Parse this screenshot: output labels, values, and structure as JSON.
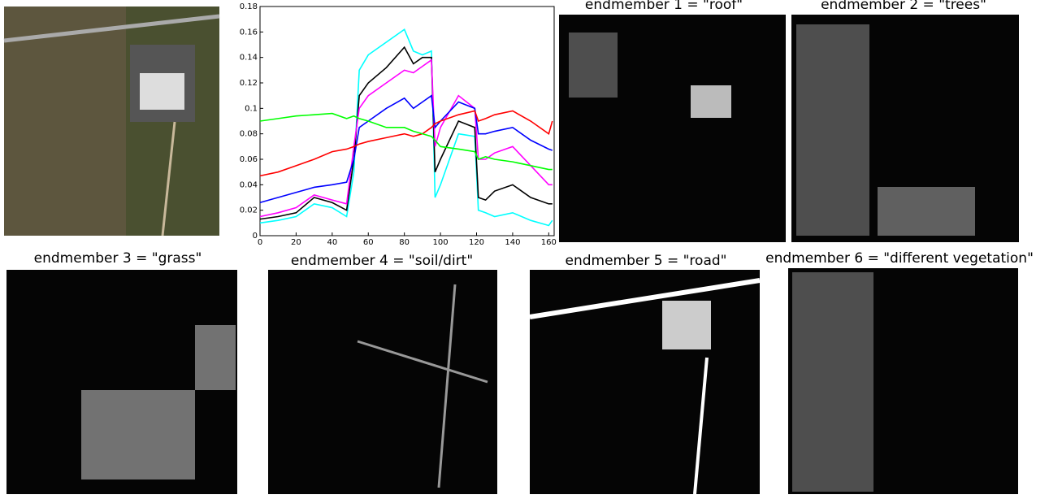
{
  "chart_data": {
    "type": "line",
    "x": [
      0,
      10,
      20,
      30,
      40,
      48,
      52,
      55,
      60,
      70,
      80,
      85,
      90,
      95,
      97,
      100,
      110,
      119,
      121,
      125,
      130,
      140,
      150,
      160,
      162
    ],
    "series": [
      {
        "color": "#00ffff",
        "values": [
          0.01,
          0.012,
          0.015,
          0.025,
          0.022,
          0.015,
          0.05,
          0.13,
          0.142,
          0.152,
          0.162,
          0.145,
          0.142,
          0.145,
          0.03,
          0.04,
          0.08,
          0.078,
          0.02,
          0.018,
          0.015,
          0.018,
          0.012,
          0.008,
          0.012
        ]
      },
      {
        "color": "#000000",
        "values": [
          0.013,
          0.015,
          0.018,
          0.03,
          0.026,
          0.02,
          0.06,
          0.11,
          0.12,
          0.132,
          0.148,
          0.135,
          0.14,
          0.14,
          0.05,
          0.06,
          0.09,
          0.085,
          0.03,
          0.028,
          0.035,
          0.04,
          0.03,
          0.025,
          0.025
        ]
      },
      {
        "color": "#ff00ff",
        "values": [
          0.015,
          0.018,
          0.022,
          0.032,
          0.028,
          0.025,
          0.07,
          0.1,
          0.11,
          0.12,
          0.13,
          0.128,
          0.133,
          0.138,
          0.07,
          0.085,
          0.11,
          0.1,
          0.06,
          0.06,
          0.065,
          0.07,
          0.055,
          0.04,
          0.04
        ]
      },
      {
        "color": "#0000ff",
        "values": [
          0.026,
          0.03,
          0.034,
          0.038,
          0.04,
          0.042,
          0.06,
          0.085,
          0.09,
          0.1,
          0.108,
          0.1,
          0.105,
          0.11,
          0.085,
          0.09,
          0.105,
          0.1,
          0.08,
          0.08,
          0.082,
          0.085,
          0.075,
          0.068,
          0.067
        ]
      },
      {
        "color": "#ff0000",
        "values": [
          0.047,
          0.05,
          0.055,
          0.06,
          0.066,
          0.068,
          0.07,
          0.072,
          0.074,
          0.077,
          0.08,
          0.078,
          0.08,
          0.085,
          0.088,
          0.09,
          0.095,
          0.098,
          0.09,
          0.092,
          0.095,
          0.098,
          0.09,
          0.08,
          0.09
        ]
      },
      {
        "color": "#00ff00",
        "values": [
          0.09,
          0.092,
          0.094,
          0.095,
          0.096,
          0.092,
          0.094,
          0.092,
          0.09,
          0.085,
          0.085,
          0.082,
          0.08,
          0.078,
          0.075,
          0.07,
          0.068,
          0.066,
          0.06,
          0.062,
          0.06,
          0.058,
          0.055,
          0.052,
          0.052
        ]
      }
    ],
    "xlim": [
      0,
      163
    ],
    "xticks": [
      0,
      20,
      40,
      60,
      80,
      100,
      120,
      140,
      160
    ],
    "ylim": [
      0,
      0.18
    ],
    "yticks": [
      0,
      0.02,
      0.04,
      0.06,
      0.08,
      0.1,
      0.12,
      0.14,
      0.16,
      0.18
    ]
  },
  "panels": [
    {
      "title": "endmember 1 = \"roof\""
    },
    {
      "title": "endmember 2 = \"trees\""
    },
    {
      "title": "endmember 3 = \"grass\""
    },
    {
      "title": "endmember 4 = \"soil/dirt\""
    },
    {
      "title": "endmember 5 = \"road\""
    },
    {
      "title": "endmember 6 = \"different vegetation\""
    }
  ]
}
